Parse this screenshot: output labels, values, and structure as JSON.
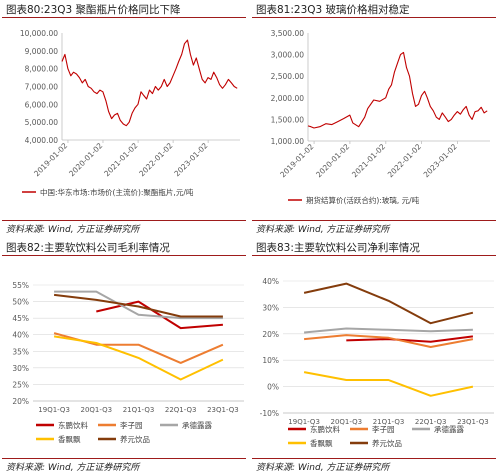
{
  "chart_data": [
    {
      "type": "line",
      "title": "图表80:23Q3 聚酯瓶片价格同比下降",
      "ylim": [
        4000,
        10000
      ],
      "y_ticks": [
        "10,000.00",
        "9,000.00",
        "8,000.00",
        "7,000.00",
        "6,000.00",
        "5,000.00",
        "4,000.00"
      ],
      "x_ticks": [
        "2019-01-02",
        "2020-01-02",
        "2021-01-02",
        "2022-01-02",
        "2023-01-02"
      ],
      "x_range": [
        "2018-11-01",
        "2023-11-30"
      ],
      "series": [
        {
          "name": "中国:华东市场:市场价(主流价):聚酯瓶片,元/吨",
          "color": "#c00000",
          "points": [
            [
              "2018-11-01",
              8400
            ],
            [
              "2018-12-01",
              8800
            ],
            [
              "2019-01-01",
              8000
            ],
            [
              "2019-02-01",
              7600
            ],
            [
              "2019-03-01",
              7800
            ],
            [
              "2019-04-01",
              7700
            ],
            [
              "2019-05-01",
              7500
            ],
            [
              "2019-06-01",
              7200
            ],
            [
              "2019-07-01",
              7400
            ],
            [
              "2019-08-01",
              7000
            ],
            [
              "2019-09-01",
              6900
            ],
            [
              "2019-10-01",
              6700
            ],
            [
              "2019-11-01",
              6600
            ],
            [
              "2019-12-01",
              6800
            ],
            [
              "2020-01-01",
              6700
            ],
            [
              "2020-02-01",
              6200
            ],
            [
              "2020-03-01",
              5600
            ],
            [
              "2020-04-01",
              5200
            ],
            [
              "2020-05-01",
              5400
            ],
            [
              "2020-06-01",
              5500
            ],
            [
              "2020-07-01",
              5100
            ],
            [
              "2020-08-01",
              4900
            ],
            [
              "2020-09-01",
              4800
            ],
            [
              "2020-10-01",
              5000
            ],
            [
              "2020-11-01",
              5500
            ],
            [
              "2020-12-01",
              5800
            ],
            [
              "2021-01-01",
              6000
            ],
            [
              "2021-02-01",
              6700
            ],
            [
              "2021-03-01",
              6500
            ],
            [
              "2021-04-01",
              6300
            ],
            [
              "2021-05-01",
              6800
            ],
            [
              "2021-06-01",
              6600
            ],
            [
              "2021-07-01",
              7000
            ],
            [
              "2021-08-01",
              6800
            ],
            [
              "2021-09-01",
              7000
            ],
            [
              "2021-10-01",
              7400
            ],
            [
              "2021-11-01",
              7000
            ],
            [
              "2021-12-01",
              7200
            ],
            [
              "2022-01-01",
              7600
            ],
            [
              "2022-02-01",
              8000
            ],
            [
              "2022-03-01",
              8400
            ],
            [
              "2022-04-01",
              8800
            ],
            [
              "2022-05-01",
              9400
            ],
            [
              "2022-06-01",
              9600
            ],
            [
              "2022-07-01",
              8800
            ],
            [
              "2022-08-01",
              8200
            ],
            [
              "2022-09-01",
              8600
            ],
            [
              "2022-10-01",
              8000
            ],
            [
              "2022-11-01",
              7400
            ],
            [
              "2022-12-01",
              7200
            ],
            [
              "2023-01-01",
              7500
            ],
            [
              "2023-02-01",
              7400
            ],
            [
              "2023-03-01",
              7800
            ],
            [
              "2023-04-01",
              7500
            ],
            [
              "2023-05-01",
              7100
            ],
            [
              "2023-06-01",
              6900
            ],
            [
              "2023-07-01",
              7100
            ],
            [
              "2023-08-01",
              7400
            ],
            [
              "2023-09-01",
              7200
            ],
            [
              "2023-10-01",
              7000
            ],
            [
              "2023-11-01",
              6900
            ]
          ]
        }
      ],
      "legend_position": "bottom",
      "source": "资料来源: Wind, 方正证券研究所"
    },
    {
      "type": "line",
      "title": "图表81:23Q3 玻璃价格相对稳定",
      "ylim": [
        1000,
        3500
      ],
      "y_ticks": [
        "3,500.00",
        "3,000.00",
        "2,500.00",
        "2,000.00",
        "1,500.00",
        "1,000.00"
      ],
      "x_ticks": [
        "2019-01-02",
        "2020-01-02",
        "2021-01-02",
        "2022-01-02",
        "2023-01-02"
      ],
      "x_range": [
        "2018-11-01",
        "2023-11-30"
      ],
      "series": [
        {
          "name": "期货结算价(活跃合约):玻璃, 元/吨",
          "color": "#c00000",
          "points": [
            [
              "2018-11-01",
              1350
            ],
            [
              "2018-12-01",
              1330
            ],
            [
              "2019-01-01",
              1300
            ],
            [
              "2019-03-01",
              1330
            ],
            [
              "2019-05-01",
              1400
            ],
            [
              "2019-07-01",
              1380
            ],
            [
              "2019-09-01",
              1450
            ],
            [
              "2019-11-01",
              1520
            ],
            [
              "2020-01-01",
              1600
            ],
            [
              "2020-02-01",
              1420
            ],
            [
              "2020-04-01",
              1330
            ],
            [
              "2020-06-01",
              1550
            ],
            [
              "2020-07-01",
              1750
            ],
            [
              "2020-09-01",
              1950
            ],
            [
              "2020-11-01",
              1920
            ],
            [
              "2021-01-01",
              2000
            ],
            [
              "2021-02-01",
              2200
            ],
            [
              "2021-03-01",
              2300
            ],
            [
              "2021-04-01",
              2600
            ],
            [
              "2021-05-01",
              2800
            ],
            [
              "2021-06-01",
              3000
            ],
            [
              "2021-07-01",
              3050
            ],
            [
              "2021-08-01",
              2700
            ],
            [
              "2021-09-01",
              2500
            ],
            [
              "2021-10-01",
              2100
            ],
            [
              "2021-11-01",
              1800
            ],
            [
              "2021-12-01",
              1850
            ],
            [
              "2022-01-01",
              2050
            ],
            [
              "2022-02-01",
              2150
            ],
            [
              "2022-03-01",
              2000
            ],
            [
              "2022-04-01",
              1800
            ],
            [
              "2022-05-01",
              1700
            ],
            [
              "2022-06-01",
              1550
            ],
            [
              "2022-07-01",
              1500
            ],
            [
              "2022-08-01",
              1650
            ],
            [
              "2022-09-01",
              1550
            ],
            [
              "2022-10-01",
              1450
            ],
            [
              "2022-11-01",
              1500
            ],
            [
              "2022-12-01",
              1600
            ],
            [
              "2023-01-01",
              1680
            ],
            [
              "2023-02-01",
              1620
            ],
            [
              "2023-03-01",
              1720
            ],
            [
              "2023-04-01",
              1800
            ],
            [
              "2023-05-01",
              1600
            ],
            [
              "2023-06-01",
              1500
            ],
            [
              "2023-07-01",
              1680
            ],
            [
              "2023-08-01",
              1700
            ],
            [
              "2023-09-01",
              1780
            ],
            [
              "2023-10-01",
              1650
            ],
            [
              "2023-11-01",
              1700
            ]
          ]
        }
      ],
      "legend_position": "bottom",
      "source": "资料来源: Wind, 方正证券研究所"
    },
    {
      "type": "line",
      "title": "图表82:主要软饮料公司毛利率情况",
      "ylim": [
        20,
        55
      ],
      "y_ticks": [
        "55%",
        "50%",
        "45%",
        "40%",
        "35%",
        "30%",
        "25%",
        "20%"
      ],
      "categories": [
        "19Q1-Q3",
        "20Q1-Q3",
        "21Q1-Q3",
        "22Q1-Q3",
        "23Q1-Q3"
      ],
      "series": [
        {
          "name": "东鹏饮料",
          "color": "#c00000",
          "values": [
            null,
            47,
            50,
            42,
            43
          ]
        },
        {
          "name": "李子园",
          "color": "#ed7d31",
          "values": [
            40.5,
            37,
            37,
            31.5,
            37
          ]
        },
        {
          "name": "承德露露",
          "color": "#a6a6a6",
          "values": [
            53,
            53,
            46,
            45,
            45
          ]
        },
        {
          "name": "香飘飘",
          "color": "#ffc000",
          "values": [
            39.5,
            37.5,
            33,
            26.5,
            32.5
          ]
        },
        {
          "name": "养元饮品",
          "color": "#843c0c",
          "values": [
            52,
            50.5,
            48.5,
            45.5,
            45.5
          ]
        }
      ],
      "legend_position": "bottom",
      "source": "资料来源: Wind, 方正证券研究所"
    },
    {
      "type": "line",
      "title": "图表83:主要软饮料公司净利率情况",
      "ylim": [
        -10,
        40
      ],
      "y_ticks": [
        "40%",
        "30%",
        "20%",
        "10%",
        "0%",
        "-10%"
      ],
      "categories": [
        "19Q1-Q3",
        "20Q1-Q3",
        "21Q1-Q3",
        "22Q1-Q3",
        "23Q1-Q3"
      ],
      "series": [
        {
          "name": "东鹏饮料",
          "color": "#c00000",
          "values": [
            null,
            17.5,
            18,
            17,
            19
          ]
        },
        {
          "name": "李子园",
          "color": "#ed7d31",
          "values": [
            18,
            19.5,
            18.5,
            15,
            18
          ]
        },
        {
          "name": "承德露露",
          "color": "#a6a6a6",
          "values": [
            20.5,
            22,
            21.5,
            21,
            21.5
          ]
        },
        {
          "name": "香飘飘",
          "color": "#ffc000",
          "values": [
            5.5,
            2.5,
            2.5,
            -3.5,
            0
          ]
        },
        {
          "name": "养元饮品",
          "color": "#843c0c",
          "values": [
            35.5,
            39,
            32.5,
            24,
            28
          ]
        }
      ],
      "legend_position": "bottom",
      "source": "资料来源: Wind, 方正证券研究所"
    }
  ]
}
